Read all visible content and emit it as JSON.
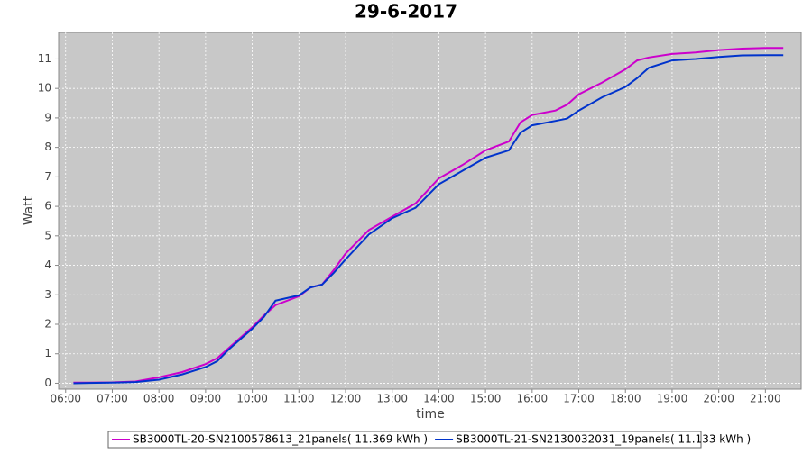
{
  "chart_data": {
    "type": "line",
    "title": "29-6-2017",
    "x_label": "time",
    "y_label": "Watt",
    "x": [
      "06:10",
      "06:30",
      "07:00",
      "07:30",
      "08:00",
      "08:30",
      "09:00",
      "09:15",
      "09:30",
      "10:00",
      "10:15",
      "10:30",
      "11:00",
      "11:15",
      "11:30",
      "11:45",
      "12:00",
      "12:30",
      "13:00",
      "13:30",
      "14:00",
      "14:30",
      "15:00",
      "15:30",
      "15:45",
      "16:00",
      "16:30",
      "16:45",
      "17:00",
      "17:30",
      "18:00",
      "18:15",
      "18:30",
      "19:00",
      "19:30",
      "20:00",
      "20:30",
      "21:00",
      "21:23"
    ],
    "series": [
      {
        "name": "SB3000TL-20-SN2100578613_21panels( 11.369 kWh )",
        "color": "#cc00cc",
        "values": [
          0.02,
          0.02,
          0.03,
          0.06,
          0.2,
          0.38,
          0.65,
          0.85,
          1.2,
          1.9,
          2.3,
          2.65,
          2.95,
          3.25,
          3.35,
          3.85,
          4.4,
          5.2,
          5.65,
          6.1,
          6.95,
          7.4,
          7.9,
          8.2,
          8.85,
          9.1,
          9.25,
          9.45,
          9.8,
          10.2,
          10.65,
          10.95,
          11.05,
          11.17,
          11.22,
          11.3,
          11.35,
          11.37,
          11.37
        ]
      },
      {
        "name": "SB3000TL-21-SN2130032031_19panels( 11.133 kWh )",
        "color": "#0033cc",
        "values": [
          0,
          0.01,
          0.02,
          0.04,
          0.12,
          0.3,
          0.55,
          0.75,
          1.15,
          1.85,
          2.25,
          2.8,
          2.98,
          3.25,
          3.35,
          3.75,
          4.2,
          5.05,
          5.6,
          5.95,
          6.75,
          7.2,
          7.65,
          7.9,
          8.5,
          8.75,
          8.9,
          8.98,
          9.25,
          9.7,
          10.05,
          10.35,
          10.7,
          10.95,
          11.0,
          11.07,
          11.12,
          11.13,
          11.13
        ]
      }
    ],
    "xlim": [
      "05:51",
      "21:46"
    ],
    "xticks": [
      "06:00",
      "07:00",
      "08:00",
      "09:00",
      "10:00",
      "11:00",
      "12:00",
      "13:00",
      "14:00",
      "15:00",
      "16:00",
      "17:00",
      "18:00",
      "19:00",
      "20:00",
      "21:00"
    ],
    "ylim": [
      -0.2,
      11.9
    ],
    "yticks": [
      0,
      1,
      2,
      3,
      4,
      5,
      6,
      7,
      8,
      9,
      10,
      11
    ],
    "grid": true,
    "legend": "bottom"
  }
}
